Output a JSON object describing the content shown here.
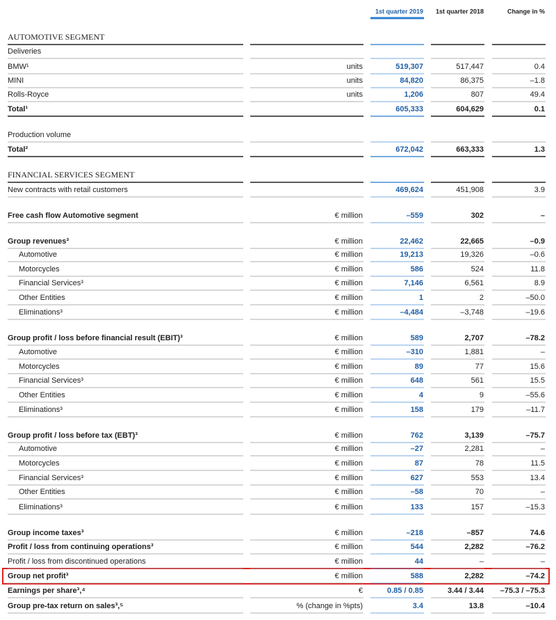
{
  "header": {
    "col_2019": "1st quarter 2019",
    "col_2018": "1st quarter 2018",
    "col_change": "Change in %"
  },
  "rows": [
    {
      "label": "AUTOMOTIVE SEGMENT"
    },
    {
      "label": "Deliveries"
    },
    {
      "label": "BMW¹",
      "unit": "units",
      "values": [
        "519,307",
        "517,447",
        "0.4"
      ]
    },
    {
      "label": "MINI",
      "unit": "units",
      "values": [
        "84,820",
        "86,375",
        "–1.8"
      ]
    },
    {
      "label": "Rolls-Royce",
      "unit": "units",
      "values": [
        "1,206",
        "807",
        "49.4"
      ]
    },
    {
      "label": "Total¹",
      "values": [
        "605,333",
        "604,629",
        "0.1"
      ]
    },
    {
      "label": "Production volume"
    },
    {
      "label": "Total²",
      "values": [
        "672,042",
        "663,333",
        "1.3"
      ]
    },
    {
      "label": "FINANCIAL SERVICES SEGMENT"
    },
    {
      "label": "New contracts with retail customers",
      "values": [
        "469,624",
        "451,908",
        "3.9"
      ]
    },
    {
      "label": "Free cash flow Automotive segment",
      "unit": "€ million",
      "values": [
        "–559",
        "302",
        "–"
      ]
    },
    {
      "label": "Group revenues³",
      "unit": "€ million",
      "values": [
        "22,462",
        "22,665",
        "–0.9"
      ]
    },
    {
      "label": "Automotive",
      "unit": "€ million",
      "values": [
        "19,213",
        "19,326",
        "–0.6"
      ]
    },
    {
      "label": "Motorcycles",
      "unit": "€ million",
      "values": [
        "586",
        "524",
        "11.8"
      ]
    },
    {
      "label": "Financial Services³",
      "unit": "€ million",
      "values": [
        "7,146",
        "6,561",
        "8.9"
      ]
    },
    {
      "label": "Other Entities",
      "unit": "€ million",
      "values": [
        "1",
        "2",
        "–50.0"
      ]
    },
    {
      "label": "Eliminations³",
      "unit": "€ million",
      "values": [
        "–4,484",
        "–3,748",
        "–19.6"
      ]
    },
    {
      "label": "Group profit / loss before financial result (EBIT)³",
      "unit": "€ million",
      "values": [
        "589",
        "2,707",
        "–78.2"
      ]
    },
    {
      "label": "Automotive",
      "unit": "€ million",
      "values": [
        "–310",
        "1,881",
        "–"
      ]
    },
    {
      "label": "Motorcycles",
      "unit": "€ million",
      "values": [
        "89",
        "77",
        "15.6"
      ]
    },
    {
      "label": "Financial Services³",
      "unit": "€ million",
      "values": [
        "648",
        "561",
        "15.5"
      ]
    },
    {
      "label": "Other Entities",
      "unit": "€ million",
      "values": [
        "4",
        "9",
        "–55.6"
      ]
    },
    {
      "label": "Eliminations³",
      "unit": "€ million",
      "values": [
        "158",
        "179",
        "–11.7"
      ]
    },
    {
      "label": "Group profit / loss before tax (EBT)³",
      "unit": "€ million",
      "values": [
        "762",
        "3,139",
        "–75.7"
      ]
    },
    {
      "label": "Automotive",
      "unit": "€ million",
      "values": [
        "–27",
        "2,281",
        "–"
      ]
    },
    {
      "label": "Motorcycles",
      "unit": "€ million",
      "values": [
        "87",
        "78",
        "11.5"
      ]
    },
    {
      "label": "Financial Services³",
      "unit": "€ million",
      "values": [
        "627",
        "553",
        "13.4"
      ]
    },
    {
      "label": "Other Entities",
      "unit": "€ million",
      "values": [
        "–58",
        "70",
        "–"
      ]
    },
    {
      "label": "Eliminations³",
      "unit": "€ million",
      "values": [
        "133",
        "157",
        "–15.3"
      ]
    },
    {
      "label": "Group income taxes³",
      "unit": "€ million",
      "values": [
        "–218",
        "–857",
        "74.6"
      ]
    },
    {
      "label": "Profit / loss from continuing operations³",
      "unit": "€ million",
      "values": [
        "544",
        "2,282",
        "–76.2"
      ]
    },
    {
      "label": "Profit / loss from discontinued operations",
      "unit": "€ million",
      "values": [
        "44",
        "–",
        "–"
      ]
    },
    {
      "label": "Group net profit³",
      "unit": "€ million",
      "values": [
        "588",
        "2,282",
        "–74.2"
      ]
    },
    {
      "label": "Earnings per share³,⁴",
      "unit": "€",
      "values": [
        "0.85 / 0.85",
        "3.44 / 3.44",
        "–75.3 / –75.3"
      ]
    },
    {
      "label": "Group pre-tax return on sales³,⁵",
      "unit": "% (change in %pts)",
      "values": [
        "3.4",
        "13.8",
        "–10.4"
      ]
    }
  ]
}
